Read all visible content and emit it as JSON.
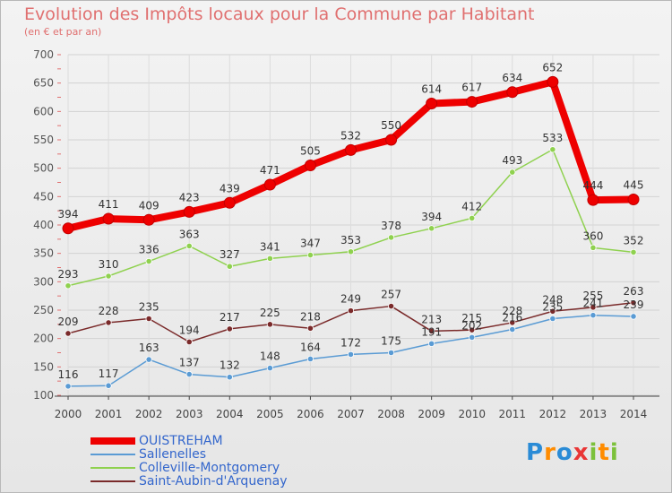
{
  "title": "Evolution des Impôts locaux pour la Commune par Habitant",
  "subtitle": "(en € et par an)",
  "logo": {
    "letters": [
      "P",
      "r",
      "o",
      "x",
      "i",
      "t",
      "i"
    ],
    "colors": [
      "#2a8bd6",
      "#ff8c00",
      "#2a8bd6",
      "#e93636",
      "#7cc13a",
      "#ff8c00",
      "#7cc13a"
    ]
  },
  "chart_data": {
    "type": "line",
    "categories": [
      "2000",
      "2001",
      "2002",
      "2003",
      "2004",
      "2005",
      "2006",
      "2007",
      "2008",
      "2009",
      "2010",
      "2011",
      "2012",
      "2013",
      "2014"
    ],
    "ylim": [
      100,
      700
    ],
    "yticks": [
      100,
      150,
      200,
      250,
      300,
      350,
      400,
      450,
      500,
      550,
      600,
      650,
      700
    ],
    "grid": true,
    "legend_position": "bottom-left",
    "series": [
      {
        "name": "OUISTREHAM",
        "color": "#ee0000",
        "values": [
          394,
          411,
          409,
          423,
          439,
          471,
          505,
          532,
          550,
          614,
          617,
          634,
          652,
          444,
          445
        ]
      },
      {
        "name": "Sallenelles",
        "color": "#5a9bd4",
        "values": [
          116,
          117,
          163,
          137,
          132,
          148,
          164,
          172,
          175,
          191,
          202,
          216,
          235,
          241,
          239
        ]
      },
      {
        "name": "Colleville-Montgomery",
        "color": "#8fd14f",
        "values": [
          293,
          310,
          336,
          363,
          327,
          341,
          347,
          353,
          378,
          394,
          412,
          493,
          533,
          360,
          352
        ]
      },
      {
        "name": "Saint-Aubin-d'Arquenay",
        "color": "#7a2a2a",
        "values": [
          209,
          228,
          235,
          194,
          217,
          225,
          218,
          249,
          257,
          213,
          215,
          228,
          248,
          255,
          263
        ]
      }
    ]
  }
}
